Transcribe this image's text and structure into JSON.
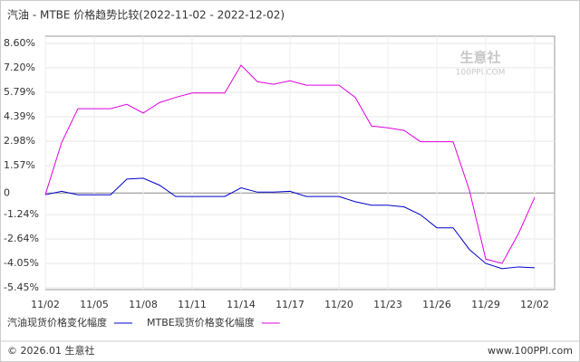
{
  "chart_data": {
    "type": "line",
    "title": "汽油 - MTBE 价格趋势比较(2022-11-02 - 2022-12-02)",
    "categories": [
      "11/02",
      null,
      null,
      "11/05",
      null,
      null,
      "11/08",
      null,
      null,
      "11/11",
      null,
      null,
      "11/14",
      null,
      null,
      "11/17",
      null,
      null,
      "11/20",
      null,
      null,
      "11/23",
      null,
      null,
      "11/26",
      null,
      null,
      "11/29",
      null,
      null,
      "12/02"
    ],
    "series": [
      {
        "name": "汽油现货价格变化幅度",
        "color": "#0000cc",
        "values": [
          -0.1,
          0.1,
          -0.1,
          -0.1,
          -0.1,
          0.8,
          0.85,
          0.45,
          -0.2,
          -0.2,
          -0.2,
          -0.2,
          0.3,
          0.05,
          0.05,
          0.1,
          -0.2,
          -0.2,
          -0.2,
          -0.5,
          -0.7,
          -0.7,
          -0.8,
          -1.25,
          -2.0,
          -2.0,
          -3.25,
          -4.05,
          -4.35,
          -4.25,
          -4.3
        ]
      },
      {
        "name": "MTBE现货价格变化幅度",
        "color": "#e000e0",
        "values": [
          -0.1,
          2.9,
          4.85,
          4.85,
          4.85,
          5.1,
          4.6,
          5.2,
          5.5,
          5.75,
          5.75,
          5.75,
          7.35,
          6.4,
          6.25,
          6.45,
          6.2,
          6.2,
          6.2,
          5.5,
          3.85,
          3.75,
          3.6,
          2.95,
          2.95,
          2.95,
          0.15,
          -3.8,
          -4.05,
          -2.35,
          -0.25
        ]
      }
    ],
    "ylim": [
      -5.45,
      8.6
    ],
    "yticks": [
      {
        "value": 8.6,
        "label": "8.60%"
      },
      {
        "value": 7.2,
        "label": "7.20%"
      },
      {
        "value": 5.79,
        "label": "5.79%"
      },
      {
        "value": 4.39,
        "label": "4.39%"
      },
      {
        "value": 2.98,
        "label": "2.98%"
      },
      {
        "value": 1.57,
        "label": "1.57%"
      },
      0,
      {
        "value": -1.24,
        "label": "-1.24%"
      },
      {
        "value": -2.64,
        "label": "-2.64%"
      },
      {
        "value": -4.05,
        "label": "-4.05%"
      },
      {
        "value": -5.45,
        "label": "-5.45%"
      }
    ],
    "grid": true,
    "watermark": "生意社",
    "watermark_sub": "100PPI.COM",
    "footer_left": "© 2026.01 生意社",
    "footer_right": "www.100PPI.com"
  }
}
